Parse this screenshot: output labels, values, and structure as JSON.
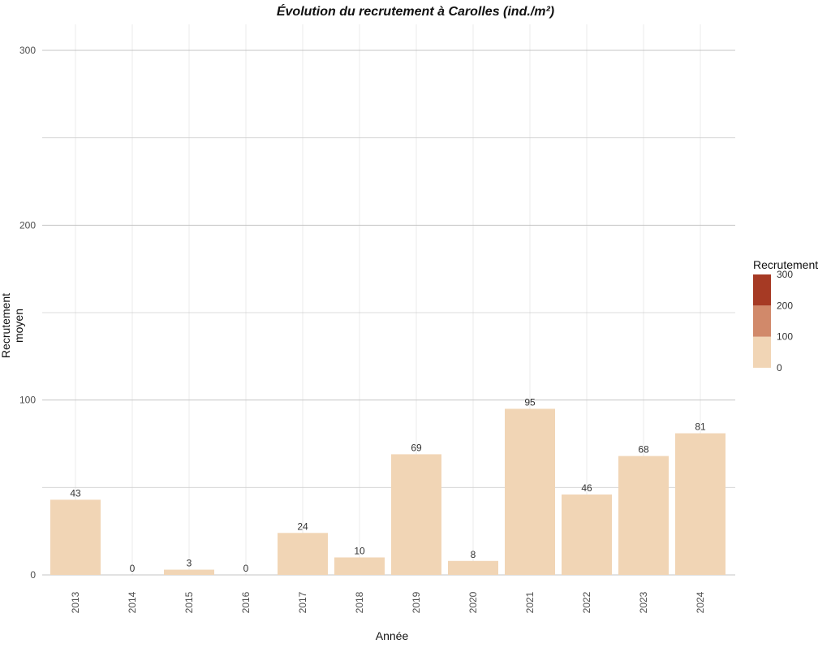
{
  "chart_data": {
    "type": "bar",
    "title": "Évolution du recrutement à Carolles (ind./m²)",
    "xlabel": "Année",
    "ylabel": "Recrutement moyen",
    "categories": [
      "2013",
      "2014",
      "2015",
      "2016",
      "2017",
      "2018",
      "2019",
      "2020",
      "2021",
      "2022",
      "2023",
      "2024"
    ],
    "values": [
      43,
      0,
      3,
      0,
      24,
      10,
      69,
      8,
      95,
      46,
      68,
      81
    ],
    "ylim": [
      0,
      300
    ],
    "yticks": [
      0,
      100,
      200,
      300
    ],
    "grid": true,
    "bar_color": "#f1d5b5",
    "legend": {
      "title": "Recrutement",
      "placement": "right",
      "bins": [
        {
          "from": 0,
          "to": 100,
          "color": "#f1d5b5"
        },
        {
          "from": 100,
          "to": 200,
          "color": "#d1896a"
        },
        {
          "from": 200,
          "to": 300,
          "color": "#a63a24"
        }
      ],
      "labels": [
        "0",
        "100",
        "200",
        "300"
      ]
    }
  }
}
